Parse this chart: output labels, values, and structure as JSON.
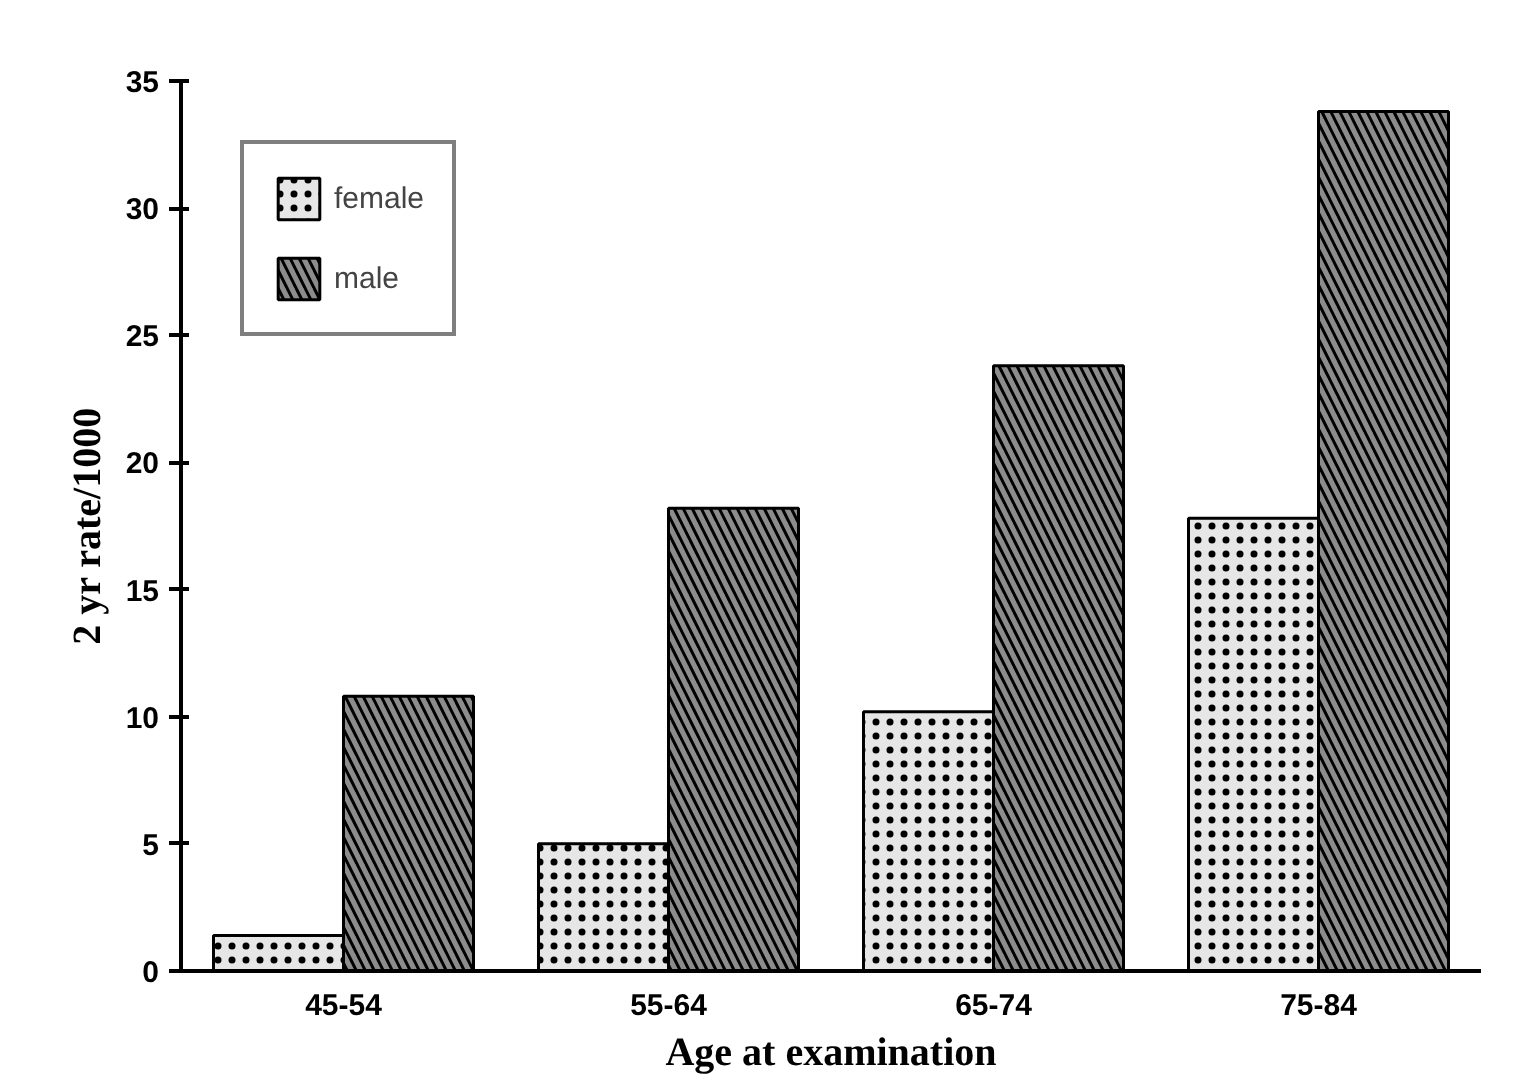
{
  "chart_data": {
    "type": "bar",
    "xlabel": "Age at examination",
    "ylabel": "2 yr rate/1000",
    "categories": [
      "45-54",
      "55-64",
      "65-74",
      "75-84"
    ],
    "series": [
      {
        "name": "female",
        "color": "#e6e6e6",
        "values": [
          1.4,
          5.0,
          10.2,
          17.8
        ]
      },
      {
        "name": "male",
        "color": "#8c8c8c",
        "values": [
          10.8,
          18.2,
          23.8,
          33.8
        ]
      }
    ],
    "ylim": [
      0,
      35
    ],
    "yticks": [
      0,
      5,
      10,
      15,
      20,
      25,
      30,
      35
    ],
    "grid": false,
    "legend": "top left"
  }
}
